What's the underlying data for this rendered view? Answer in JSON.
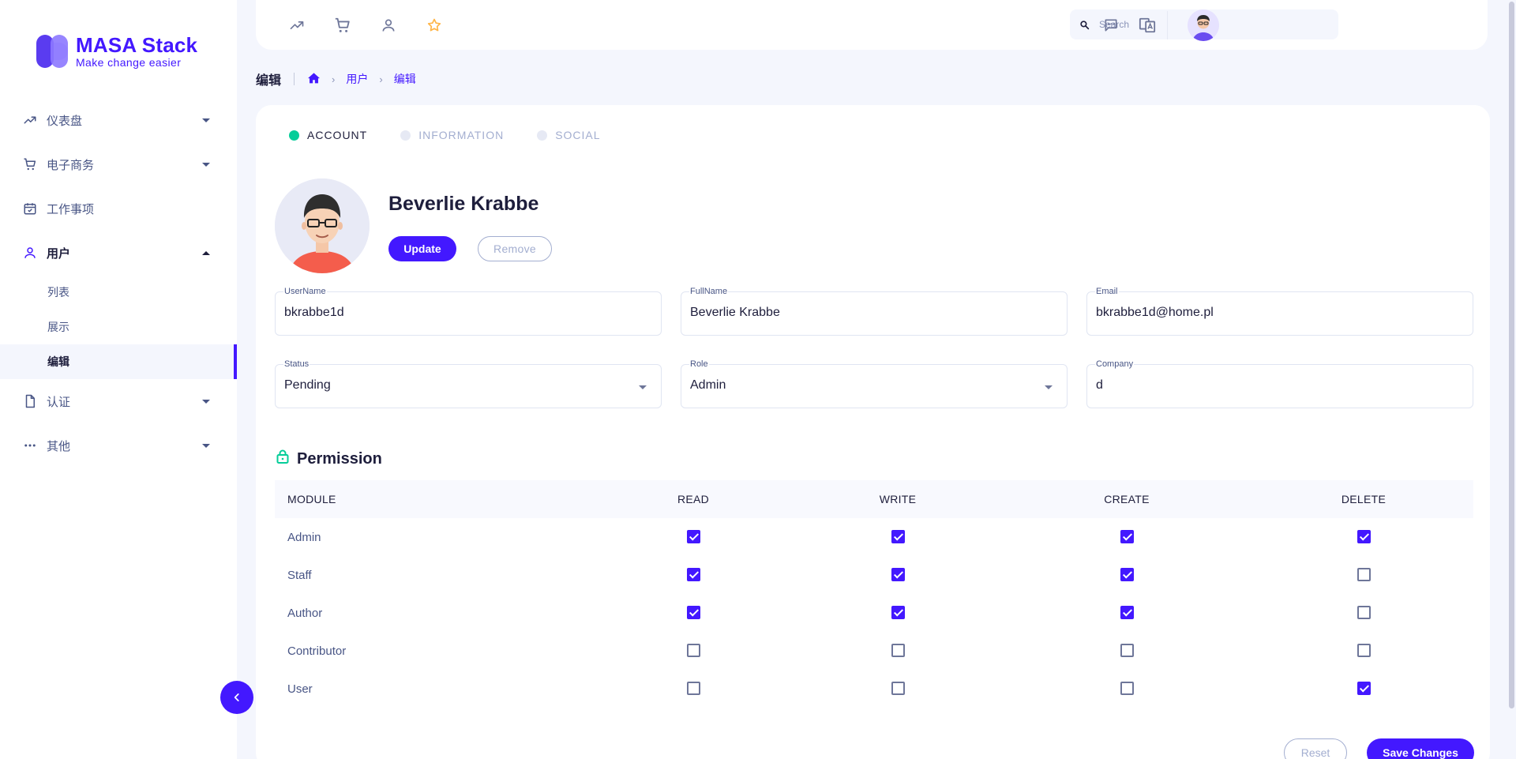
{
  "brand": {
    "title": "MASA Stack",
    "subtitle": "Make change easier",
    "accent": "#4318ff"
  },
  "sidebar": {
    "items": [
      {
        "label": "仪表盘",
        "icon": "trending-up-icon"
      },
      {
        "label": "电子商务",
        "icon": "cart-icon"
      },
      {
        "label": "工作事项",
        "icon": "calendar-check-icon"
      },
      {
        "label": "用户",
        "icon": "user-icon",
        "expanded": true,
        "children": [
          {
            "label": "列表"
          },
          {
            "label": "展示"
          },
          {
            "label": "编辑",
            "selected": true
          }
        ]
      },
      {
        "label": "认证",
        "icon": "file-icon"
      },
      {
        "label": "其他",
        "icon": "more-dots-icon"
      }
    ]
  },
  "header": {
    "icons": [
      "trending-up-icon",
      "cart-icon",
      "user-icon",
      "star-icon"
    ],
    "search_placeholder": "Search"
  },
  "breadcrumb": {
    "title": "编辑",
    "items": [
      "用户",
      "编辑"
    ]
  },
  "steps": [
    {
      "label": "ACCOUNT",
      "active": true
    },
    {
      "label": "INFORMATION",
      "active": false
    },
    {
      "label": "SOCIAL",
      "active": false
    }
  ],
  "profile": {
    "name": "Beverlie Krabbe",
    "update_label": "Update",
    "remove_label": "Remove"
  },
  "form": {
    "username": {
      "label": "UserName",
      "value": "bkrabbe1d"
    },
    "fullname": {
      "label": "FullName",
      "value": "Beverlie Krabbe"
    },
    "email": {
      "label": "Email",
      "value": "bkrabbe1d@home.pl"
    },
    "status": {
      "label": "Status",
      "value": "Pending"
    },
    "role": {
      "label": "Role",
      "value": "Admin"
    },
    "company": {
      "label": "Company",
      "value": "d"
    }
  },
  "permission": {
    "title": "Permission",
    "columns": [
      "MODULE",
      "READ",
      "WRITE",
      "CREATE",
      "DELETE"
    ],
    "rows": [
      {
        "module": "Admin",
        "read": true,
        "write": true,
        "create": true,
        "delete": true
      },
      {
        "module": "Staff",
        "read": true,
        "write": true,
        "create": true,
        "delete": false
      },
      {
        "module": "Author",
        "read": true,
        "write": true,
        "create": true,
        "delete": false
      },
      {
        "module": "Contributor",
        "read": false,
        "write": false,
        "create": false,
        "delete": false
      },
      {
        "module": "User",
        "read": false,
        "write": false,
        "create": false,
        "delete": true
      }
    ]
  },
  "actions": {
    "reset_label": "Reset",
    "save_label": "Save Changes"
  }
}
